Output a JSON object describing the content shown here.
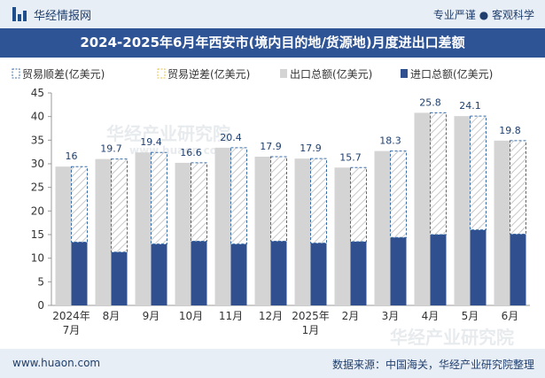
{
  "header": {
    "brand": "华经情报网",
    "tagline": "专业严谨 ● 客观科学"
  },
  "title": "2024-2025年6月年西安市(境内目的地/货源地)月度进出口差额",
  "footer": {
    "url": "www.huaon.com",
    "source": "数据来源：中国海关，华经产业研究院整理"
  },
  "watermark": "华经产业研究院",
  "watermark_url": "www.huaon.com",
  "colors": {
    "export": "#d4d4d4",
    "import": "#2f4f8f",
    "surplus_border": "#3a6da8",
    "deficit_border": "#e8c040",
    "title_bg": "#2f5496"
  },
  "chart_data": {
    "type": "bar",
    "legend": [
      "贸易顺差(亿美元)",
      "贸易逆差(亿美元)",
      "出口总额(亿美元)",
      "进口总额(亿美元)"
    ],
    "legend_position": "top",
    "categories": [
      "2024年\n7月",
      "8月",
      "9月",
      "10月",
      "11月",
      "12月",
      "2025年\n1月",
      "2月",
      "3月",
      "4月",
      "5月",
      "6月"
    ],
    "series": [
      {
        "name": "出口总额(亿美元)",
        "values": [
          29.4,
          31.0,
          32.4,
          30.2,
          33.4,
          31.5,
          31.1,
          29.2,
          32.7,
          40.8,
          40.1,
          34.9
        ]
      },
      {
        "name": "进口总额(亿美元)",
        "values": [
          13.4,
          11.3,
          13.0,
          13.6,
          13.0,
          13.6,
          13.2,
          13.5,
          14.4,
          15.0,
          16.0,
          15.1
        ]
      },
      {
        "name": "贸易顺差(亿美元)",
        "values": [
          16,
          19.7,
          19.4,
          16.6,
          20.4,
          17.9,
          17.9,
          15.7,
          18.3,
          25.8,
          24.1,
          19.8
        ]
      }
    ],
    "data_labels": [
      "16",
      "19.7",
      "19.4",
      "16.6",
      "20.4",
      "17.9",
      "17.9",
      "15.7",
      "18.3",
      "25.8",
      "24.1",
      "19.8"
    ],
    "ylim": [
      0,
      45
    ],
    "yticks": [
      0,
      5,
      10,
      15,
      20,
      25,
      30,
      35,
      40,
      45
    ]
  }
}
